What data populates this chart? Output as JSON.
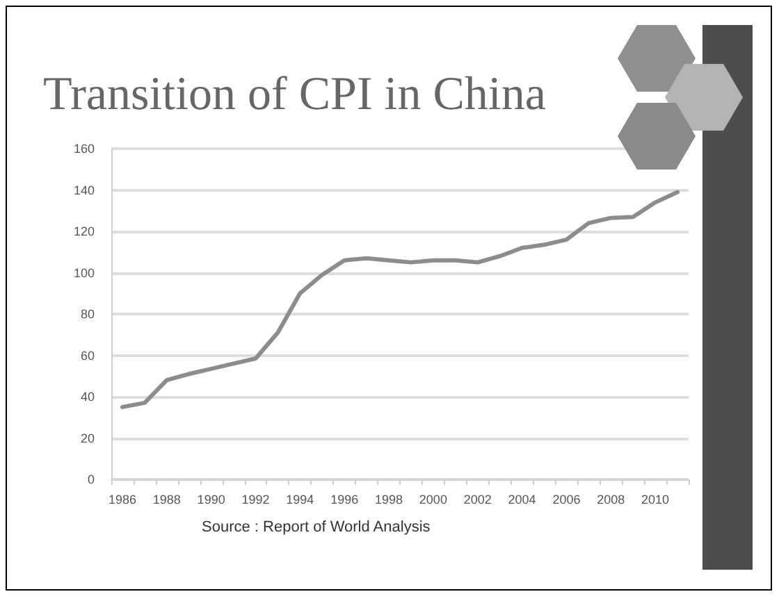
{
  "chart_data": {
    "type": "line",
    "title": "Transition of CPI in China",
    "categories": [
      "1986",
      null,
      "1988",
      null,
      "1990",
      null,
      "1992",
      null,
      "1994",
      null,
      "1996",
      null,
      "1998",
      null,
      "2000",
      null,
      "2002",
      null,
      "2004",
      null,
      "2006",
      null,
      "2008",
      null,
      "2010",
      null
    ],
    "series": [
      {
        "color": "#8c8c8c",
        "values": [
          35,
          37,
          48,
          51,
          53.5,
          56,
          58.5,
          71,
          90,
          99,
          106,
          107,
          106,
          105,
          106,
          106,
          105,
          108,
          112,
          113.5,
          116,
          124,
          126.5,
          127,
          134,
          139
        ]
      }
    ],
    "ylim": [
      0,
      160
    ],
    "yticks": [
      0,
      20,
      40,
      60,
      80,
      100,
      120,
      140,
      160
    ],
    "grid": "y",
    "marker": "none",
    "line_style": "solid",
    "annotations": [
      "Source : Report of World Analysis"
    ]
  }
}
